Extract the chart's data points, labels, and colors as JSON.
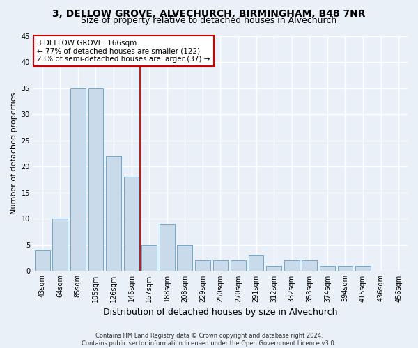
{
  "title": "3, DELLOW GROVE, ALVECHURCH, BIRMINGHAM, B48 7NR",
  "subtitle": "Size of property relative to detached houses in Alvechurch",
  "xlabel": "Distribution of detached houses by size in Alvechurch",
  "ylabel": "Number of detached properties",
  "footer1": "Contains HM Land Registry data © Crown copyright and database right 2024.",
  "footer2": "Contains public sector information licensed under the Open Government Licence v3.0.",
  "bar_labels": [
    "43sqm",
    "64sqm",
    "85sqm",
    "105sqm",
    "126sqm",
    "146sqm",
    "167sqm",
    "188sqm",
    "208sqm",
    "229sqm",
    "250sqm",
    "270sqm",
    "291sqm",
    "312sqm",
    "332sqm",
    "353sqm",
    "374sqm",
    "394sqm",
    "415sqm",
    "436sqm",
    "456sqm"
  ],
  "bar_values": [
    4,
    10,
    35,
    35,
    22,
    18,
    5,
    9,
    5,
    2,
    2,
    2,
    3,
    1,
    2,
    2,
    1,
    1,
    1,
    0,
    0
  ],
  "bar_color": "#c9daea",
  "bar_edge_color": "#6fa8d0",
  "vline_color": "#cc0000",
  "annotation_box_color": "#ffffff",
  "annotation_box_edge": "#cc0000",
  "property_label": "3 DELLOW GROVE: 166sqm",
  "annotation_line1": "← 77% of detached houses are smaller (122)",
  "annotation_line2": "23% of semi-detached houses are larger (37) →",
  "ylim": [
    0,
    45
  ],
  "yticks": [
    0,
    5,
    10,
    15,
    20,
    25,
    30,
    35,
    40,
    45
  ],
  "bg_color": "#eaf0f8",
  "grid_color": "#ffffff",
  "title_fontsize": 10,
  "subtitle_fontsize": 9,
  "tick_fontsize": 7,
  "ylabel_fontsize": 8,
  "xlabel_fontsize": 9,
  "annotation_fontsize": 7.5,
  "footer_fontsize": 6
}
